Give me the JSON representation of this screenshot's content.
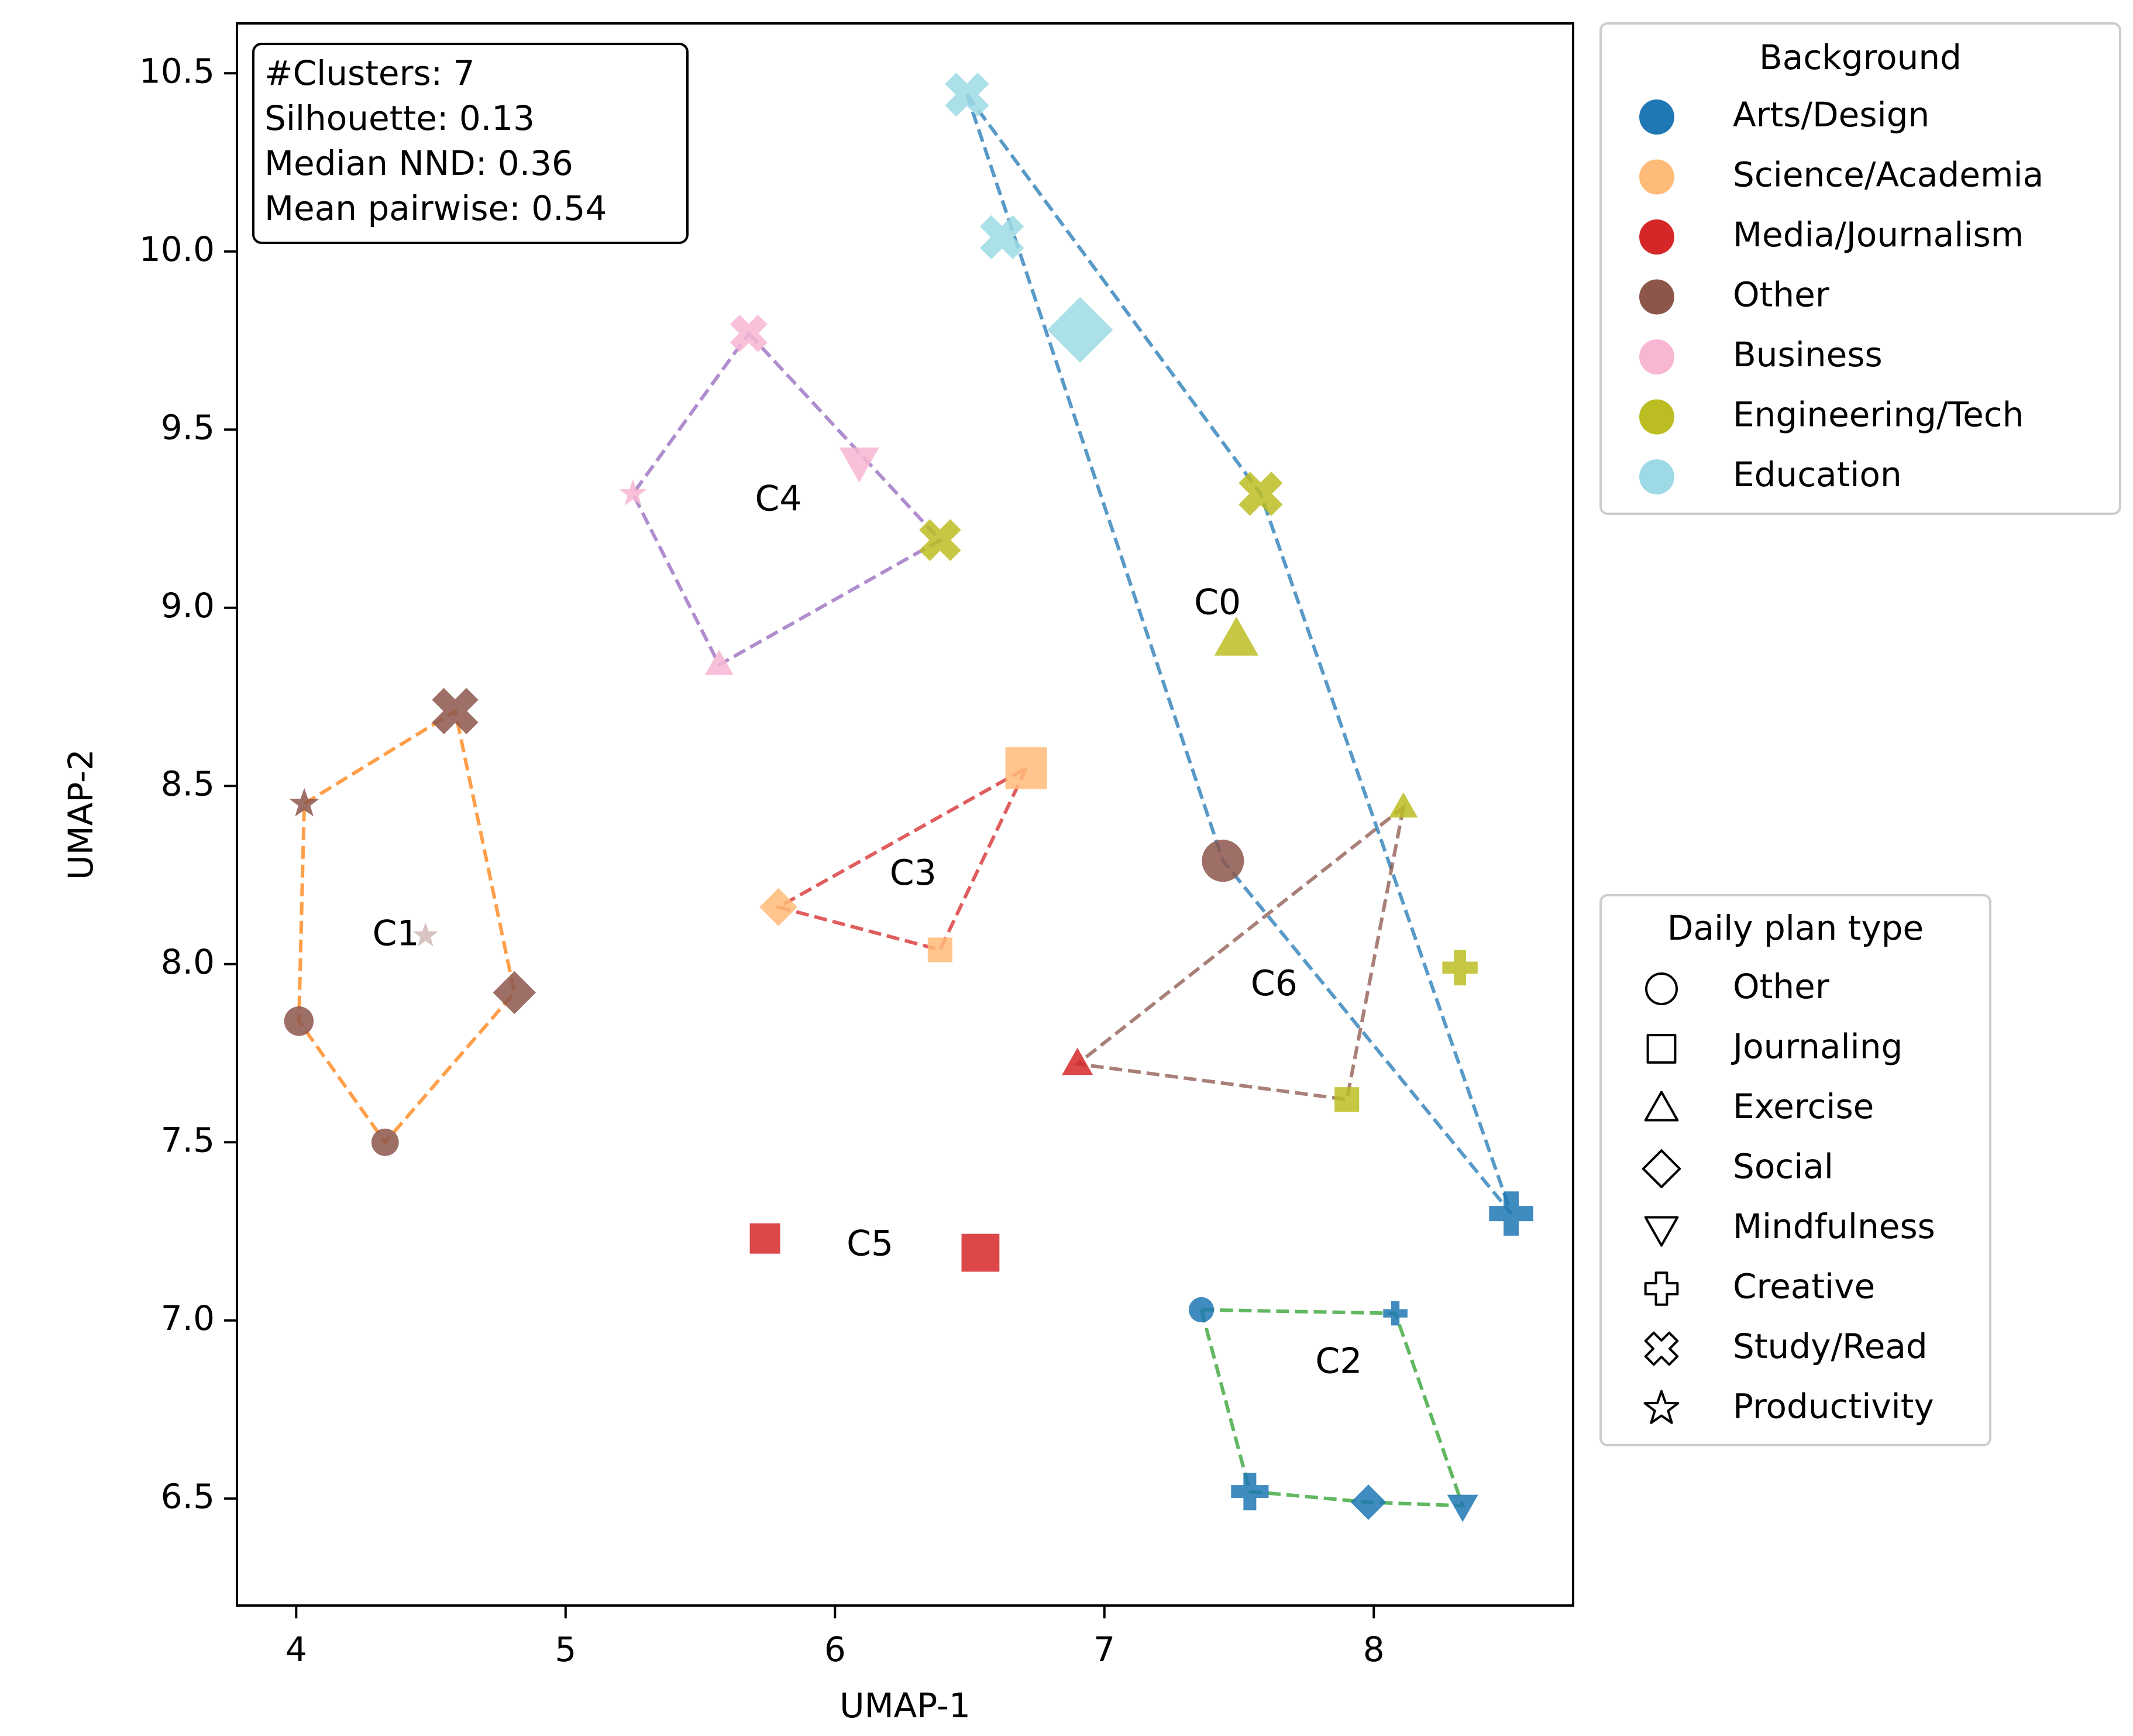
{
  "chart_data": {
    "type": "scatter",
    "title": "",
    "xlabel": "UMAP-1",
    "ylabel": "UMAP-2",
    "xlim": [
      3.78,
      8.74
    ],
    "ylim": [
      6.2,
      10.64
    ],
    "x_ticks": [
      4,
      5,
      6,
      7,
      8
    ],
    "y_ticks": [
      6.5,
      7.0,
      7.5,
      8.0,
      8.5,
      9.0,
      9.5,
      10.0,
      10.5
    ],
    "x_tick_labels": [
      "4",
      "5",
      "6",
      "7",
      "8"
    ],
    "y_tick_labels": [
      "6.5",
      "7.0",
      "7.5",
      "8.0",
      "8.5",
      "9.0",
      "9.5",
      "10.0",
      "10.5"
    ],
    "grid": false,
    "stats_box": {
      "lines": [
        "#Clusters: 7",
        "Silhouette: 0.13",
        "Median NND: 0.36",
        "Mean pairwise: 0.54"
      ],
      "placement": "top-left"
    },
    "legend_background": {
      "title": "Background",
      "placement": "outside-top-right",
      "entries": [
        {
          "label": "Arts/Design",
          "color": "#1f77b4"
        },
        {
          "label": "Science/Academia",
          "color": "#ffbb78"
        },
        {
          "label": "Media/Journalism",
          "color": "#d62728"
        },
        {
          "label": "Other",
          "color": "#8c564b"
        },
        {
          "label": "Business",
          "color": "#f7b6d2"
        },
        {
          "label": "Engineering/Tech",
          "color": "#bcbd22"
        },
        {
          "label": "Education",
          "color": "#9edae5"
        }
      ]
    },
    "legend_plan_type": {
      "title": "Daily plan type",
      "placement": "outside-bottom-right",
      "entries": [
        {
          "label": "Other",
          "marker": "circle"
        },
        {
          "label": "Journaling",
          "marker": "square"
        },
        {
          "label": "Exercise",
          "marker": "triangle-up"
        },
        {
          "label": "Social",
          "marker": "diamond"
        },
        {
          "label": "Mindfulness",
          "marker": "triangle-down"
        },
        {
          "label": "Creative",
          "marker": "plus"
        },
        {
          "label": "Study/Read",
          "marker": "x"
        },
        {
          "label": "Productivity",
          "marker": "star"
        }
      ]
    },
    "clusters": [
      {
        "label": "C0",
        "label_x": 7.42,
        "label_y": 9.01,
        "hull_color": "#1f77b4",
        "hull": [
          [
            6.49,
            10.44
          ],
          [
            7.58,
            9.32
          ],
          [
            8.51,
            7.3
          ],
          [
            7.44,
            8.29
          ]
        ]
      },
      {
        "label": "C1",
        "label_x": 4.37,
        "label_y": 8.08,
        "hull_color": "#ff7f0e",
        "hull": [
          [
            4.03,
            8.45
          ],
          [
            4.59,
            8.71
          ],
          [
            4.81,
            7.92
          ],
          [
            4.33,
            7.5
          ],
          [
            4.01,
            7.84
          ]
        ]
      },
      {
        "label": "C2",
        "label_x": 7.87,
        "label_y": 6.88,
        "hull_color": "#2ca02c",
        "hull": [
          [
            7.36,
            7.03
          ],
          [
            8.08,
            7.02
          ],
          [
            8.33,
            6.48
          ],
          [
            7.98,
            6.49
          ],
          [
            7.54,
            6.52
          ]
        ]
      },
      {
        "label": "C3",
        "label_x": 6.29,
        "label_y": 8.25,
        "hull_color": "#d62728",
        "hull": [
          [
            6.71,
            8.55
          ],
          [
            6.39,
            8.04
          ],
          [
            5.79,
            8.16
          ]
        ]
      },
      {
        "label": "C4",
        "label_x": 5.79,
        "label_y": 9.3,
        "hull_color": "#9467bd",
        "hull": [
          [
            5.68,
            9.77
          ],
          [
            6.39,
            9.19
          ],
          [
            5.57,
            8.84
          ],
          [
            5.25,
            9.32
          ]
        ]
      },
      {
        "label": "C5",
        "label_x": 6.13,
        "label_y": 7.21,
        "hull_color": null,
        "hull": []
      },
      {
        "label": "C6",
        "label_x": 7.63,
        "label_y": 7.94,
        "hull_color": "#8c564b",
        "hull": [
          [
            8.11,
            8.44
          ],
          [
            7.9,
            7.62
          ],
          [
            6.9,
            7.72
          ]
        ]
      }
    ],
    "points": [
      {
        "x": 6.49,
        "y": 10.44,
        "background": "Education",
        "plan": "Study/Read",
        "size": 1.0
      },
      {
        "x": 6.62,
        "y": 10.04,
        "background": "Education",
        "plan": "Study/Read",
        "size": 1.0
      },
      {
        "x": 6.91,
        "y": 9.78,
        "background": "Education",
        "plan": "Social",
        "size": 1.3
      },
      {
        "x": 7.58,
        "y": 9.32,
        "background": "Engineering/Tech",
        "plan": "Study/Read",
        "size": 1.0
      },
      {
        "x": 7.49,
        "y": 8.91,
        "background": "Engineering/Tech",
        "plan": "Exercise",
        "size": 1.0
      },
      {
        "x": 7.44,
        "y": 8.29,
        "background": "Other",
        "plan": "Other",
        "size": 1.0
      },
      {
        "x": 8.32,
        "y": 7.99,
        "background": "Engineering/Tech",
        "plan": "Creative",
        "size": 0.8
      },
      {
        "x": 8.51,
        "y": 7.3,
        "background": "Arts/Design",
        "plan": "Creative",
        "size": 1.0
      },
      {
        "x": 5.68,
        "y": 9.77,
        "background": "Business",
        "plan": "Study/Read",
        "size": 0.85
      },
      {
        "x": 6.09,
        "y": 9.41,
        "background": "Business",
        "plan": "Mindfulness",
        "size": 0.9
      },
      {
        "x": 5.25,
        "y": 9.32,
        "background": "Business",
        "plan": "Productivity",
        "size": 0.6
      },
      {
        "x": 6.39,
        "y": 9.19,
        "background": "Engineering/Tech",
        "plan": "Study/Read",
        "size": 0.95
      },
      {
        "x": 5.57,
        "y": 8.84,
        "background": "Business",
        "plan": "Exercise",
        "size": 0.65
      },
      {
        "x": 4.59,
        "y": 8.71,
        "background": "Other",
        "plan": "Study/Read",
        "size": 1.05
      },
      {
        "x": 4.03,
        "y": 8.45,
        "background": "Other",
        "plan": "Productivity",
        "size": 0.65
      },
      {
        "x": 4.48,
        "y": 8.08,
        "background": "Other",
        "plan": "Productivity",
        "size": 0.55,
        "faded": true
      },
      {
        "x": 4.81,
        "y": 7.92,
        "background": "Other",
        "plan": "Social",
        "size": 0.85
      },
      {
        "x": 4.01,
        "y": 7.84,
        "background": "Other",
        "plan": "Other",
        "size": 0.7
      },
      {
        "x": 4.33,
        "y": 7.5,
        "background": "Other",
        "plan": "Other",
        "size": 0.65
      },
      {
        "x": 6.71,
        "y": 8.55,
        "background": "Science/Academia",
        "plan": "Journaling",
        "size": 1.1
      },
      {
        "x": 5.79,
        "y": 8.16,
        "background": "Science/Academia",
        "plan": "Social",
        "size": 0.75
      },
      {
        "x": 6.39,
        "y": 8.04,
        "background": "Science/Academia",
        "plan": "Journaling",
        "size": 0.65
      },
      {
        "x": 8.11,
        "y": 8.44,
        "background": "Engineering/Tech",
        "plan": "Exercise",
        "size": 0.65
      },
      {
        "x": 6.9,
        "y": 7.72,
        "background": "Media/Journalism",
        "plan": "Exercise",
        "size": 0.7
      },
      {
        "x": 7.9,
        "y": 7.62,
        "background": "Engineering/Tech",
        "plan": "Journaling",
        "size": 0.65
      },
      {
        "x": 5.74,
        "y": 7.23,
        "background": "Media/Journalism",
        "plan": "Journaling",
        "size": 0.8
      },
      {
        "x": 6.54,
        "y": 7.19,
        "background": "Media/Journalism",
        "plan": "Journaling",
        "size": 1.0
      },
      {
        "x": 7.36,
        "y": 7.03,
        "background": "Arts/Design",
        "plan": "Other",
        "size": 0.6
      },
      {
        "x": 8.08,
        "y": 7.02,
        "background": "Arts/Design",
        "plan": "Creative",
        "size": 0.55
      },
      {
        "x": 7.54,
        "y": 6.52,
        "background": "Arts/Design",
        "plan": "Creative",
        "size": 0.85
      },
      {
        "x": 7.98,
        "y": 6.49,
        "background": "Arts/Design",
        "plan": "Social",
        "size": 0.7
      },
      {
        "x": 8.33,
        "y": 6.48,
        "background": "Arts/Design",
        "plan": "Mindfulness",
        "size": 0.7
      }
    ]
  }
}
